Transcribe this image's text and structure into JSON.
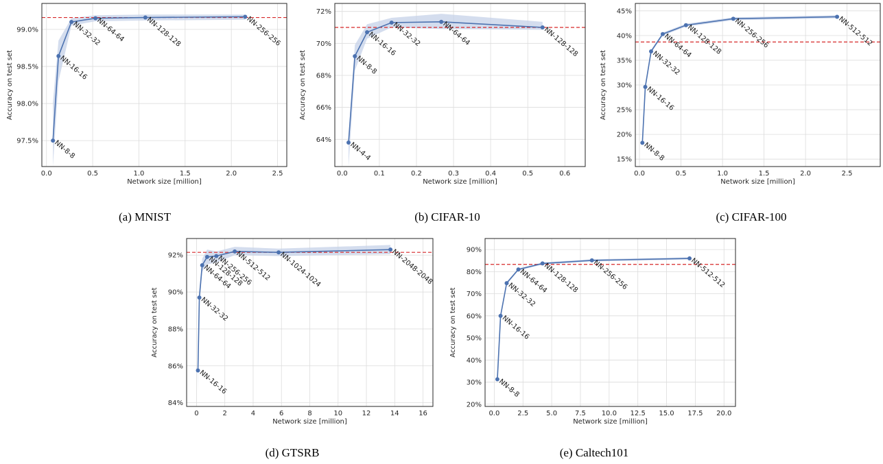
{
  "colors": {
    "line": "#4c72b0",
    "band": "#c5d1e8",
    "baseline": "#d62728",
    "grid": "#dcdcdc"
  },
  "chart_data": [
    {
      "type": "line",
      "caption": "(a) MNIST",
      "xlabel": "Network size [million]",
      "ylabel": "Accuracy on test set",
      "xlim": [
        -0.05,
        2.6
      ],
      "ylim": [
        97.15,
        99.35
      ],
      "xticks": [
        0.0,
        0.5,
        1.0,
        1.5,
        2.0,
        2.5
      ],
      "xtick_labels": [
        "0.0",
        "0.5",
        "1.0",
        "1.5",
        "2.0",
        "2.5"
      ],
      "yticks": [
        97.5,
        98.0,
        98.5,
        99.0
      ],
      "ytick_labels": [
        "97.5%",
        "98.0%",
        "98.5%",
        "99.0%"
      ],
      "baseline": 99.16,
      "points": [
        {
          "x": 0.07,
          "y": 97.5,
          "lo": 97.15,
          "hi": 98.02,
          "label": "NN-8-8"
        },
        {
          "x": 0.13,
          "y": 98.64,
          "lo": 98.3,
          "hi": 98.85,
          "label": "NN-16-16"
        },
        {
          "x": 0.27,
          "y": 99.1,
          "lo": 99.05,
          "hi": 99.15,
          "label": "NN-32-32"
        },
        {
          "x": 0.53,
          "y": 99.15,
          "lo": 99.11,
          "hi": 99.19,
          "label": "NN-64-64"
        },
        {
          "x": 1.07,
          "y": 99.16,
          "lo": 99.12,
          "hi": 99.2,
          "label": "NN-128-128"
        },
        {
          "x": 2.15,
          "y": 99.17,
          "lo": 99.13,
          "hi": 99.2,
          "label": "NN-256-256"
        }
      ]
    },
    {
      "type": "line",
      "caption": "(b) CIFAR-10",
      "xlabel": "Network size [million]",
      "ylabel": "Accuracy on test set",
      "xlim": [
        -0.02,
        0.655
      ],
      "ylim": [
        62.3,
        72.5
      ],
      "xticks": [
        0.0,
        0.1,
        0.2,
        0.3,
        0.4,
        0.5,
        0.6
      ],
      "xtick_labels": [
        "0.0",
        "0.1",
        "0.2",
        "0.3",
        "0.4",
        "0.5",
        "0.6"
      ],
      "yticks": [
        64,
        66,
        68,
        70,
        72
      ],
      "ytick_labels": [
        "64%",
        "66%",
        "68%",
        "70%",
        "72%"
      ],
      "baseline": 71.0,
      "points": [
        {
          "x": 0.017,
          "y": 63.8,
          "lo": 62.3,
          "hi": 64.2,
          "label": "NN-4-4"
        },
        {
          "x": 0.034,
          "y": 69.2,
          "lo": 68.3,
          "hi": 69.9,
          "label": "NN-8-8"
        },
        {
          "x": 0.067,
          "y": 70.7,
          "lo": 70.3,
          "hi": 71.2,
          "label": "NN-16-16"
        },
        {
          "x": 0.133,
          "y": 71.3,
          "lo": 71.0,
          "hi": 71.6,
          "label": "NN-32-32"
        },
        {
          "x": 0.267,
          "y": 71.35,
          "lo": 70.9,
          "hi": 71.85,
          "label": "NN-64-64"
        },
        {
          "x": 0.54,
          "y": 71.0,
          "lo": 70.85,
          "hi": 71.35,
          "label": "NN-128-128"
        }
      ]
    },
    {
      "type": "line",
      "caption": "(c) CIFAR-100",
      "xlabel": "Network size [million]",
      "ylabel": "Accuracy on test set",
      "xlim": [
        -0.05,
        2.9
      ],
      "ylim": [
        13.5,
        46.5
      ],
      "xticks": [
        0.0,
        0.5,
        1.0,
        1.5,
        2.0,
        2.5
      ],
      "xtick_labels": [
        "0.0",
        "0.5",
        "1.0",
        "1.5",
        "2.0",
        "2.5"
      ],
      "yticks": [
        15,
        20,
        25,
        30,
        35,
        40,
        45
      ],
      "ytick_labels": [
        "15%",
        "20%",
        "25%",
        "30%",
        "35%",
        "40%",
        "45%"
      ],
      "baseline": 38.7,
      "points": [
        {
          "x": 0.035,
          "y": 18.3,
          "lo": 17.9,
          "hi": 18.7,
          "label": "NN-8-8"
        },
        {
          "x": 0.07,
          "y": 29.6,
          "lo": 29.2,
          "hi": 30.0,
          "label": "NN-16-16"
        },
        {
          "x": 0.14,
          "y": 36.8,
          "lo": 36.5,
          "hi": 37.1,
          "label": "NN-32-32"
        },
        {
          "x": 0.28,
          "y": 40.3,
          "lo": 40.0,
          "hi": 40.6,
          "label": "NN-64-64"
        },
        {
          "x": 0.56,
          "y": 42.1,
          "lo": 41.8,
          "hi": 42.4,
          "label": "NN-128-128"
        },
        {
          "x": 1.13,
          "y": 43.4,
          "lo": 43.1,
          "hi": 43.7,
          "label": "NN-256-256"
        },
        {
          "x": 2.38,
          "y": 43.8,
          "lo": 43.5,
          "hi": 44.1,
          "label": "NN-512-512"
        }
      ]
    },
    {
      "type": "line",
      "caption": "(d) GTSRB",
      "xlabel": "Network size [million]",
      "ylabel": "Accuracy on test set",
      "xlim": [
        -0.7,
        16.7
      ],
      "ylim": [
        83.8,
        92.9
      ],
      "xticks": [
        0,
        2,
        4,
        6,
        8,
        10,
        12,
        14,
        16
      ],
      "xtick_labels": [
        "0",
        "2",
        "4",
        "6",
        "8",
        "10",
        "12",
        "14",
        "16"
      ],
      "yticks": [
        84,
        86,
        88,
        90,
        92
      ],
      "ytick_labels": [
        "84%",
        "86%",
        "88%",
        "90%",
        "92%"
      ],
      "baseline": 92.15,
      "points": [
        {
          "x": 0.1,
          "y": 85.75,
          "lo": 84.6,
          "hi": 86.3,
          "label": "NN-16-16"
        },
        {
          "x": 0.2,
          "y": 89.7,
          "lo": 89.3,
          "hi": 90.1,
          "label": "NN-32-32"
        },
        {
          "x": 0.4,
          "y": 91.45,
          "lo": 91.1,
          "hi": 91.8,
          "label": "NN-64-64"
        },
        {
          "x": 0.75,
          "y": 91.9,
          "lo": 91.5,
          "hi": 92.3,
          "label": "NN-128-128"
        },
        {
          "x": 1.4,
          "y": 91.95,
          "lo": 91.6,
          "hi": 92.2,
          "label": "NN-256-256"
        },
        {
          "x": 2.7,
          "y": 92.2,
          "lo": 92.0,
          "hi": 92.45,
          "label": "NN-512-512"
        },
        {
          "x": 5.8,
          "y": 92.15,
          "lo": 91.95,
          "hi": 92.35,
          "label": "NN-1024-1024"
        },
        {
          "x": 13.7,
          "y": 92.3,
          "lo": 92.05,
          "hi": 92.55,
          "label": "NN-2048-2048"
        }
      ]
    },
    {
      "type": "line",
      "caption": "(e) Caltech101",
      "xlabel": "Network size [million]",
      "ylabel": "Accuracy on test set",
      "xlim": [
        -0.8,
        21.0
      ],
      "ylim": [
        19.0,
        95.0
      ],
      "xticks": [
        0.0,
        2.5,
        5.0,
        7.5,
        10.0,
        12.5,
        15.0,
        17.5,
        20.0
      ],
      "xtick_labels": [
        "0.0",
        "2.5",
        "5.0",
        "7.5",
        "10.0",
        "12.5",
        "15.0",
        "17.5",
        "20.0"
      ],
      "yticks": [
        20,
        30,
        40,
        50,
        60,
        70,
        80,
        90
      ],
      "ytick_labels": [
        "20%",
        "30%",
        "40%",
        "50%",
        "60%",
        "70%",
        "80%",
        "90%"
      ],
      "baseline": 83.3,
      "points": [
        {
          "x": 0.27,
          "y": 31.3,
          "lo": 30.8,
          "hi": 31.8,
          "label": "NN-8-8"
        },
        {
          "x": 0.55,
          "y": 60.0,
          "lo": 59.3,
          "hi": 60.7,
          "label": "NN-16-16"
        },
        {
          "x": 1.08,
          "y": 74.8,
          "lo": 74.2,
          "hi": 75.4,
          "label": "NN-32-32"
        },
        {
          "x": 2.1,
          "y": 81.0,
          "lo": 80.5,
          "hi": 81.5,
          "label": "NN-64-64"
        },
        {
          "x": 4.2,
          "y": 83.7,
          "lo": 83.2,
          "hi": 84.2,
          "label": "NN-128-128"
        },
        {
          "x": 8.5,
          "y": 85.1,
          "lo": 84.6,
          "hi": 85.6,
          "label": "NN-256-256"
        },
        {
          "x": 17.0,
          "y": 86.0,
          "lo": 85.5,
          "hi": 86.5,
          "label": "NN-512-512"
        }
      ]
    }
  ]
}
